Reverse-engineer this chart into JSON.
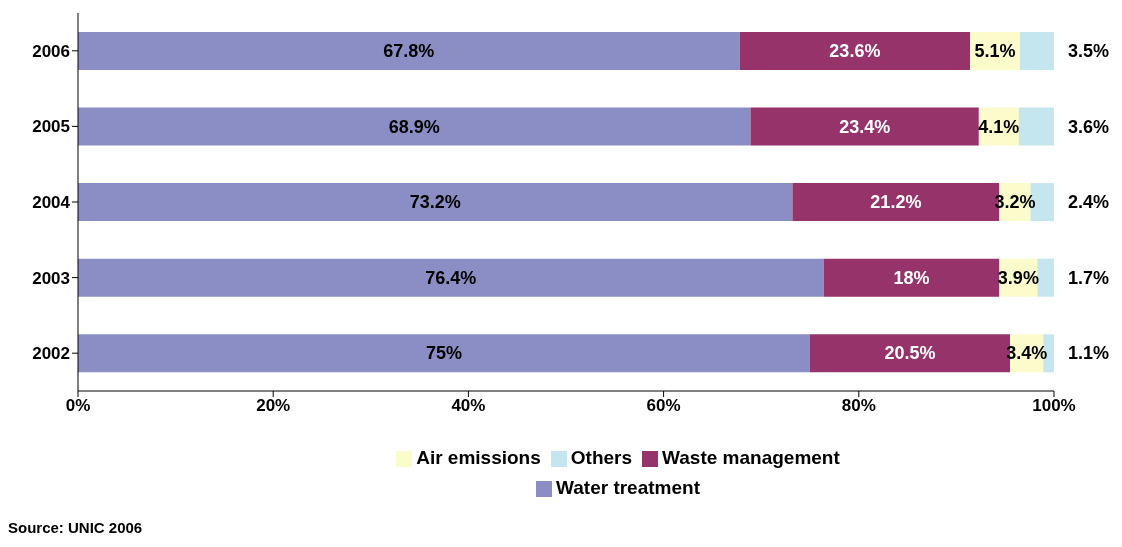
{
  "chart_data": {
    "type": "bar",
    "orientation": "horizontal",
    "stacked": true,
    "categories": [
      "2006",
      "2005",
      "2004",
      "2003",
      "2002"
    ],
    "series": [
      {
        "name": "Water treatment",
        "color": "#8a8ec4",
        "values": [
          67.8,
          68.9,
          73.2,
          76.4,
          75
        ],
        "value_labels": [
          "67.8%",
          "68.9%",
          "73.2%",
          "76.4%",
          "75%"
        ]
      },
      {
        "name": "Waste management",
        "color": "#96336a",
        "values": [
          23.6,
          23.4,
          21.2,
          18,
          20.5
        ],
        "value_labels": [
          "23.6%",
          "23.4%",
          "21.2%",
          "18%",
          "20.5%"
        ]
      },
      {
        "name": "Air emissions",
        "color": "#fbfbcc",
        "values": [
          5.1,
          4.1,
          3.2,
          3.9,
          3.4
        ],
        "value_labels": [
          "5.1%",
          "4.1%",
          "3.2%",
          "3.9%",
          "3.4%"
        ]
      },
      {
        "name": "Others",
        "color": "#c6e6ef",
        "values": [
          3.5,
          3.6,
          2.4,
          1.7,
          1.1
        ],
        "value_labels": [
          "3.5%",
          "3.6%",
          "2.4%",
          "1.7%",
          "1.1%"
        ]
      }
    ],
    "xlim": [
      0,
      100
    ],
    "xticks": [
      {
        "value": 0,
        "label": "0%"
      },
      {
        "value": 20,
        "label": "20%"
      },
      {
        "value": 40,
        "label": "40%"
      },
      {
        "value": 60,
        "label": "60%"
      },
      {
        "value": 80,
        "label": "80%"
      },
      {
        "value": 100,
        "label": "100%"
      }
    ],
    "grid": false,
    "legend": "bottom",
    "annotations": [
      "Source: UNIC 2006"
    ]
  }
}
